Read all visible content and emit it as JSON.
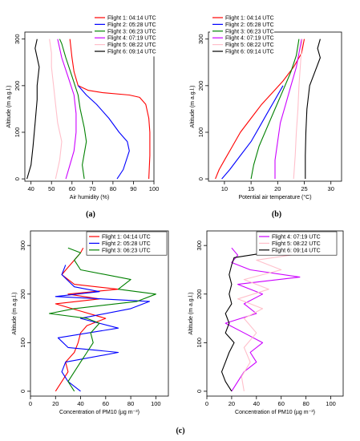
{
  "panel_labels": [
    "(a)",
    "(b)",
    "(c)"
  ],
  "chart_data": [
    {
      "type": "line",
      "panel": "(a)",
      "xlabel": "Air humidity (%)",
      "ylabel": "Altitude (m a.g.l.)",
      "xlim": [
        37,
        100
      ],
      "ylim": [
        -5,
        315
      ],
      "xticks": [
        40,
        50,
        60,
        70,
        80,
        90,
        100
      ],
      "yticks": [
        0,
        100,
        200,
        300
      ],
      "legend": "top-right",
      "series": [
        {
          "name": "Flight 1: 04:14 UTC",
          "color": "#ff0000",
          "points": [
            [
              97.5,
              0
            ],
            [
              98,
              50
            ],
            [
              98,
              100
            ],
            [
              97.5,
              130
            ],
            [
              96,
              160
            ],
            [
              93,
              175
            ],
            [
              88,
              180
            ],
            [
              75,
              185
            ],
            [
              68,
              190
            ],
            [
              63,
              200
            ],
            [
              61,
              230
            ],
            [
              60,
              260
            ],
            [
              59,
              300
            ]
          ]
        },
        {
          "name": "Flight 2: 05:28 UTC",
          "color": "#0000ff",
          "points": [
            [
              82,
              0
            ],
            [
              85,
              20
            ],
            [
              88,
              60
            ],
            [
              87,
              80
            ],
            [
              83,
              100
            ],
            [
              78,
              130
            ],
            [
              72,
              160
            ],
            [
              67,
              180
            ],
            [
              63,
              200
            ]
          ]
        },
        {
          "name": "Flight 3: 06:23 UTC",
          "color": "#008000",
          "points": [
            [
              66,
              0
            ],
            [
              65,
              30
            ],
            [
              67,
              80
            ],
            [
              66,
              110
            ],
            [
              64,
              150
            ],
            [
              63,
              180
            ],
            [
              60,
              220
            ],
            [
              57,
              260
            ],
            [
              55,
              290
            ],
            [
              54,
              300
            ]
          ]
        },
        {
          "name": "Flight 4: 07:19 UTC",
          "color": "#cc00ff",
          "points": [
            [
              57,
              0
            ],
            [
              59,
              30
            ],
            [
              61,
              60
            ],
            [
              62,
              100
            ],
            [
              62,
              140
            ],
            [
              61,
              180
            ],
            [
              58,
              220
            ],
            [
              55,
              260
            ],
            [
              53,
              300
            ]
          ]
        },
        {
          "name": "Flight 5: 08:22 UTC",
          "color": "#ffc0cb",
          "points": [
            [
              52,
              0
            ],
            [
              54,
              40
            ],
            [
              55,
              80
            ],
            [
              53,
              120
            ],
            [
              52,
              160
            ],
            [
              51,
              200
            ],
            [
              50,
              240
            ],
            [
              50,
              270
            ],
            [
              49,
              300
            ]
          ]
        },
        {
          "name": "Flight 6: 09:14 UTC",
          "color": "#000000",
          "points": [
            [
              38,
              0
            ],
            [
              40,
              30
            ],
            [
              41,
              70
            ],
            [
              42,
              120
            ],
            [
              43,
              170
            ],
            [
              43,
              200
            ],
            [
              44,
              240
            ],
            [
              42,
              280
            ],
            [
              43,
              300
            ]
          ]
        }
      ]
    },
    {
      "type": "line",
      "panel": "(b)",
      "xlabel": "Potential air temperature (°C)",
      "ylabel": "Altitude (m a.g.l.)",
      "xlim": [
        7,
        32
      ],
      "ylim": [
        -5,
        315
      ],
      "xticks": [
        10,
        15,
        20,
        25,
        30
      ],
      "yticks": [
        0,
        100,
        200,
        300
      ],
      "legend": "top-left",
      "series": [
        {
          "name": "Flight 1: 04:14 UTC",
          "color": "#ff0000",
          "points": [
            [
              8.3,
              0
            ],
            [
              9,
              20
            ],
            [
              10,
              40
            ],
            [
              11.5,
              70
            ],
            [
              13,
              100
            ],
            [
              15,
              130
            ],
            [
              17,
              160
            ],
            [
              19,
              185
            ],
            [
              21,
              210
            ],
            [
              23,
              240
            ],
            [
              24.5,
              270
            ],
            [
              25,
              300
            ]
          ]
        },
        {
          "name": "Flight 2: 05:28 UTC",
          "color": "#0000ff",
          "points": [
            [
              9.5,
              0
            ],
            [
              11,
              20
            ],
            [
              13,
              50
            ],
            [
              15,
              80
            ],
            [
              16.5,
              110
            ],
            [
              18,
              140
            ],
            [
              19.5,
              170
            ],
            [
              21,
              200
            ]
          ]
        },
        {
          "name": "Flight 3: 06:23 UTC",
          "color": "#008000",
          "points": [
            [
              15,
              0
            ],
            [
              15.5,
              30
            ],
            [
              16.5,
              70
            ],
            [
              18,
              110
            ],
            [
              19.5,
              150
            ],
            [
              21,
              190
            ],
            [
              22.5,
              230
            ],
            [
              23.5,
              265
            ],
            [
              24,
              300
            ]
          ]
        },
        {
          "name": "Flight 4: 07:19 UTC",
          "color": "#cc00ff",
          "points": [
            [
              19.5,
              0
            ],
            [
              19.5,
              40
            ],
            [
              20,
              80
            ],
            [
              20.5,
              120
            ],
            [
              21.5,
              160
            ],
            [
              22.5,
              200
            ],
            [
              23.5,
              240
            ],
            [
              24,
              270
            ],
            [
              24.5,
              300
            ]
          ]
        },
        {
          "name": "Flight 5: 08:22 UTC",
          "color": "#ffc0cb",
          "points": [
            [
              23,
              0
            ],
            [
              23.3,
              50
            ],
            [
              23.5,
              100
            ],
            [
              23.8,
              150
            ],
            [
              24,
              200
            ],
            [
              24.3,
              250
            ],
            [
              24.6,
              300
            ]
          ]
        },
        {
          "name": "Flight 6: 09:14 UTC",
          "color": "#000000",
          "points": [
            [
              25.2,
              0
            ],
            [
              25.2,
              50
            ],
            [
              25.3,
              100
            ],
            [
              25.5,
              150
            ],
            [
              26,
              200
            ],
            [
              27,
              230
            ],
            [
              28,
              260
            ],
            [
              27.5,
              280
            ],
            [
              28,
              300
            ]
          ]
        }
      ]
    },
    {
      "type": "line",
      "panel": "(c) left",
      "xlabel": "Concentration of PM10 (µg m⁻³)",
      "ylabel": "Altitude (m a.g.l.)",
      "xlim": [
        0,
        110
      ],
      "ylim": [
        -10,
        330
      ],
      "xticks": [
        0,
        20,
        40,
        60,
        80,
        100
      ],
      "yticks": [
        0,
        100,
        200,
        300
      ],
      "legend": "top-right",
      "series": [
        {
          "name": "Flight 1: 04:14 UTC",
          "color": "#ff0000",
          "points": [
            [
              20,
              0
            ],
            [
              25,
              20
            ],
            [
              30,
              40
            ],
            [
              28,
              60
            ],
            [
              35,
              80
            ],
            [
              38,
              100
            ],
            [
              40,
              120
            ],
            [
              45,
              135
            ],
            [
              60,
              150
            ],
            [
              40,
              165
            ],
            [
              20,
              180
            ],
            [
              55,
              190
            ],
            [
              30,
              200
            ],
            [
              70,
              210
            ],
            [
              35,
              220
            ],
            [
              25,
              240
            ],
            [
              30,
              255
            ],
            [
              35,
              270
            ],
            [
              40,
              285
            ],
            [
              42,
              295
            ]
          ]
        },
        {
          "name": "Flight 2: 05:28 UTC",
          "color": "#0000ff",
          "points": [
            [
              40,
              0
            ],
            [
              30,
              20
            ],
            [
              25,
              40
            ],
            [
              28,
              60
            ],
            [
              70,
              80
            ],
            [
              30,
              90
            ],
            [
              22,
              110
            ],
            [
              70,
              130
            ],
            [
              40,
              150
            ],
            [
              80,
              170
            ],
            [
              95,
              185
            ],
            [
              20,
              195
            ],
            [
              55,
              205
            ],
            [
              35,
              215
            ],
            [
              25,
              240
            ],
            [
              28,
              260
            ]
          ]
        },
        {
          "name": "Flight 3: 06:23 UTC",
          "color": "#008000",
          "points": [
            [
              35,
              0
            ],
            [
              30,
              20
            ],
            [
              35,
              40
            ],
            [
              40,
              60
            ],
            [
              45,
              80
            ],
            [
              50,
              100
            ],
            [
              48,
              120
            ],
            [
              55,
              140
            ],
            [
              45,
              150
            ],
            [
              15,
              160
            ],
            [
              35,
              170
            ],
            [
              85,
              185
            ],
            [
              100,
              200
            ],
            [
              70,
              210
            ],
            [
              80,
              230
            ],
            [
              40,
              250
            ],
            [
              35,
              270
            ],
            [
              40,
              285
            ],
            [
              30,
              295
            ]
          ]
        }
      ]
    },
    {
      "type": "line",
      "panel": "(c) right",
      "xlabel": "Concentration of PM10 (µg m⁻³)",
      "ylabel": "Altitude (m a.g.l.)",
      "xlim": [
        0,
        110
      ],
      "ylim": [
        -10,
        330
      ],
      "xticks": [
        0,
        20,
        40,
        60,
        80,
        100
      ],
      "yticks": [
        0,
        100,
        200,
        300
      ],
      "legend": "top-right",
      "series": [
        {
          "name": "Flight 4: 07:19 UTC",
          "color": "#cc00ff",
          "points": [
            [
              20,
              0
            ],
            [
              25,
              20
            ],
            [
              30,
              40
            ],
            [
              40,
              60
            ],
            [
              35,
              80
            ],
            [
              45,
              100
            ],
            [
              30,
              120
            ],
            [
              15,
              140
            ],
            [
              40,
              160
            ],
            [
              30,
              180
            ],
            [
              45,
              200
            ],
            [
              25,
              220
            ],
            [
              75,
              235
            ],
            [
              35,
              250
            ],
            [
              20,
              265
            ],
            [
              25,
              280
            ],
            [
              20,
              295
            ]
          ]
        },
        {
          "name": "Flight 5: 08:22 UTC",
          "color": "#ffc0cb",
          "points": [
            [
              30,
              0
            ],
            [
              28,
              30
            ],
            [
              35,
              60
            ],
            [
              30,
              90
            ],
            [
              40,
              120
            ],
            [
              30,
              150
            ],
            [
              45,
              170
            ],
            [
              25,
              190
            ],
            [
              50,
              210
            ],
            [
              30,
              230
            ],
            [
              60,
              250
            ],
            [
              40,
              270
            ],
            [
              80,
              285
            ],
            [
              95,
              295
            ]
          ]
        },
        {
          "name": "Flight 6: 09:14 UTC",
          "color": "#000000",
          "points": [
            [
              20,
              0
            ],
            [
              15,
              20
            ],
            [
              12,
              40
            ],
            [
              15,
              60
            ],
            [
              18,
              80
            ],
            [
              22,
              100
            ],
            [
              15,
              120
            ],
            [
              18,
              140
            ],
            [
              15,
              160
            ],
            [
              20,
              180
            ],
            [
              18,
              200
            ],
            [
              20,
              220
            ],
            [
              18,
              240
            ],
            [
              20,
              260
            ],
            [
              22,
              275
            ],
            [
              60,
              290
            ],
            [
              100,
              297
            ]
          ]
        }
      ]
    }
  ]
}
